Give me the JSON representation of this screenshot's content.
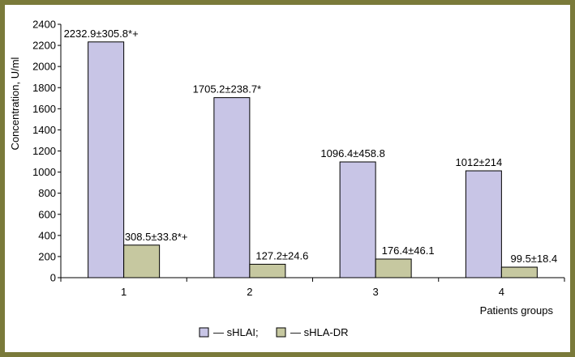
{
  "chart_data": {
    "type": "bar",
    "categories": [
      "1",
      "2",
      "3",
      "4"
    ],
    "series": [
      {
        "name": "— sHLAI;",
        "color": "#c8c5e6",
        "values": [
          2232.9,
          1705.2,
          1096.4,
          1012
        ],
        "labels": [
          "2232.9±305.8*+",
          "1705.2±238.7*",
          "1096.4±458.8",
          "1012±214"
        ]
      },
      {
        "name": "— sHLA-DR",
        "color": "#c6c8a0",
        "values": [
          308.5,
          127.2,
          176.4,
          99.5
        ],
        "labels": [
          "308.5±33.8*+",
          "127.2±24.6",
          "176.4±46.1",
          "99.5±18.4"
        ]
      }
    ],
    "xlabel": "Patients groups",
    "ylabel": "Concentration, U/ml",
    "ylim": [
      0,
      2400
    ],
    "yticks": [
      0,
      200,
      400,
      600,
      800,
      1000,
      1200,
      1400,
      1600,
      1800,
      2000,
      2200,
      2400
    ],
    "grid": false,
    "legend": "bottom-center"
  }
}
